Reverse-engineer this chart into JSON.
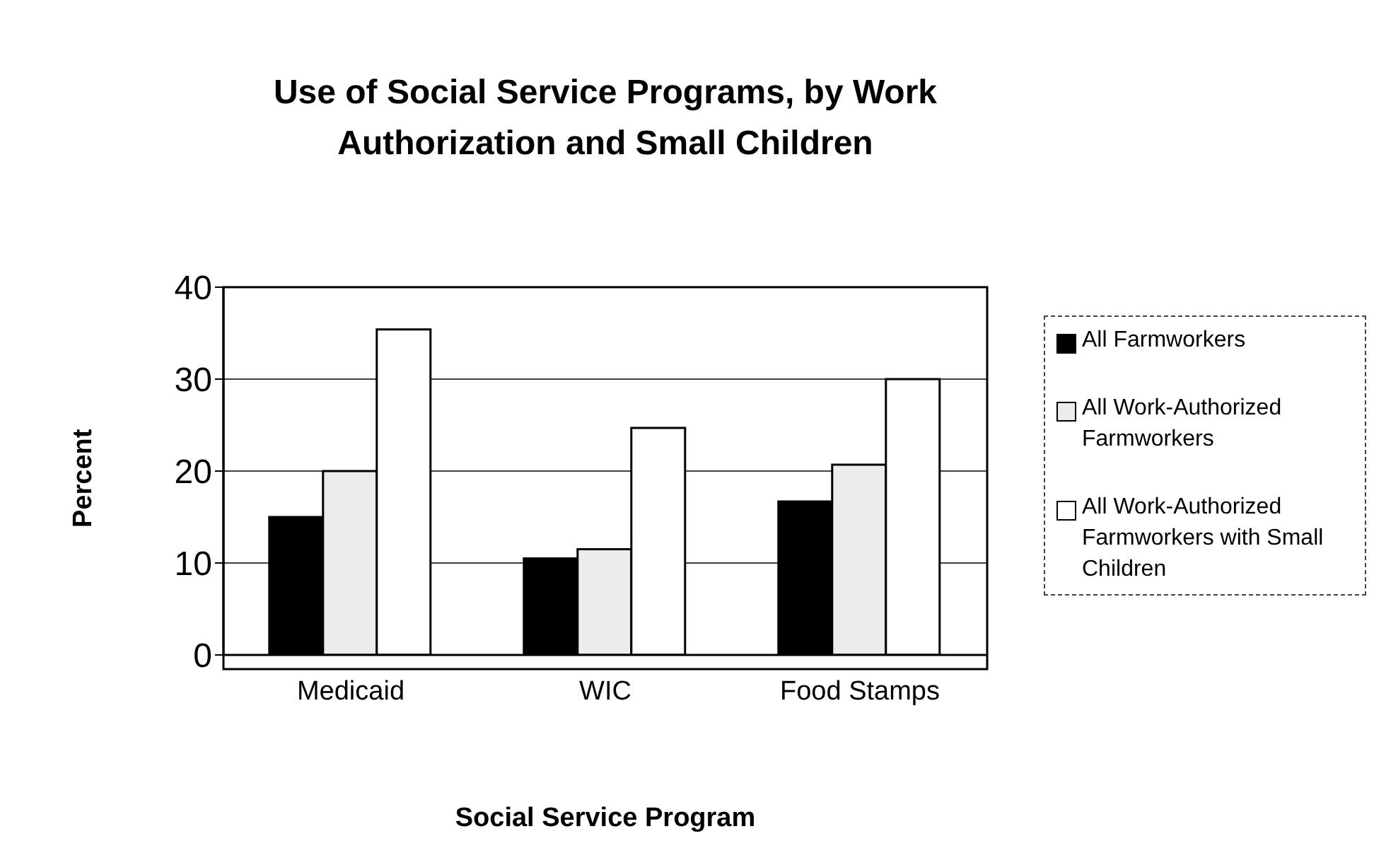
{
  "chart_data": {
    "type": "bar",
    "title": "Use of Social Service Programs, by Work Authorization and Small Children",
    "xlabel": "Social Service Program",
    "ylabel": "Percent",
    "categories": [
      "Medicaid",
      "WIC",
      "Food Stamps"
    ],
    "series": [
      {
        "name": "All Farmworkers",
        "color": "#000000",
        "values": [
          15,
          10.5,
          16.7
        ]
      },
      {
        "name": "All Work-Authorized Farmworkers",
        "color": "#ececec",
        "values": [
          20,
          11.5,
          20.7
        ]
      },
      {
        "name": "All Work-Authorized Farmworkers with Small Children",
        "color": "#ffffff",
        "values": [
          35.4,
          24.7,
          30
        ]
      }
    ],
    "ylim": [
      0,
      40
    ],
    "yticks": [
      0,
      10,
      20,
      30,
      40
    ],
    "grid": "y",
    "legend": "right"
  }
}
